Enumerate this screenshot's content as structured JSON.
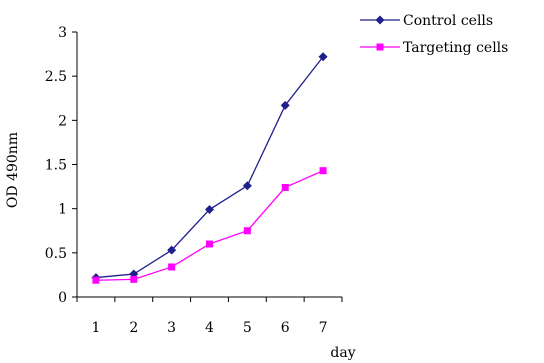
{
  "chart_data": {
    "type": "line",
    "xlabel": "day",
    "ylabel": "OD 490nm",
    "x": [
      1,
      2,
      3,
      4,
      5,
      6,
      7
    ],
    "x_tick_labels": [
      "1",
      "2",
      "3",
      "4",
      "5",
      "6",
      "7"
    ],
    "ylim": [
      0,
      3
    ],
    "y_ticks": [
      0,
      0.5,
      1,
      1.5,
      2,
      2.5,
      3
    ],
    "y_tick_labels": [
      "0",
      "0.5",
      "1",
      "1.5",
      "2",
      "2.5",
      "3"
    ],
    "grid": false,
    "legend_position": "top-right",
    "series": [
      {
        "name": "Control cells",
        "color": "#1f1f8f",
        "marker": "diamond",
        "values": [
          0.22,
          0.26,
          0.53,
          0.99,
          1.26,
          2.17,
          2.72
        ]
      },
      {
        "name": "Targeting cells",
        "color": "#ff00ff",
        "marker": "square",
        "values": [
          0.19,
          0.2,
          0.34,
          0.6,
          0.75,
          1.24,
          1.43
        ]
      }
    ]
  }
}
